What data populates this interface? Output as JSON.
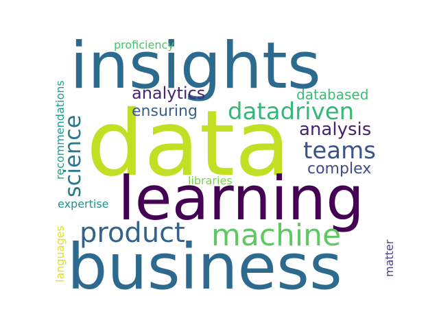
{
  "words": [
    {
      "key": "data",
      "text": "data",
      "color": "#c2df23"
    },
    {
      "key": "insights",
      "text": "insights",
      "color": "#2c6b8e"
    },
    {
      "key": "learning",
      "text": "learning",
      "color": "#440154"
    },
    {
      "key": "business",
      "text": "business",
      "color": "#2e6a8e"
    },
    {
      "key": "machine",
      "text": "machine",
      "color": "#5ec962"
    },
    {
      "key": "product",
      "text": "product",
      "color": "#33638d"
    },
    {
      "key": "datadriven",
      "text": "datadriven",
      "color": "#35b779"
    },
    {
      "key": "teams",
      "text": "teams",
      "color": "#3b528b"
    },
    {
      "key": "science",
      "text": "science",
      "color": "#2a788e"
    },
    {
      "key": "analysis",
      "text": "analysis",
      "color": "#481f70"
    },
    {
      "key": "analytics",
      "text": "analytics",
      "color": "#482475"
    },
    {
      "key": "complex",
      "text": "complex",
      "color": "#3e4a89"
    },
    {
      "key": "ensuring",
      "text": "ensuring",
      "color": "#355f8d"
    },
    {
      "key": "databased",
      "text": "databased",
      "color": "#3cbb75"
    },
    {
      "key": "proficiency",
      "text": "proficiency",
      "color": "#4ac16d"
    },
    {
      "key": "recommendations",
      "text": "recommendations",
      "color": "#1f9e89"
    },
    {
      "key": "libraries",
      "text": "libraries",
      "color": "#7ad151"
    },
    {
      "key": "expertise",
      "text": "expertise",
      "color": "#21918c"
    },
    {
      "key": "languages",
      "text": "languages",
      "color": "#dde318"
    },
    {
      "key": "matter",
      "text": "matter",
      "color": "#414487"
    }
  ]
}
